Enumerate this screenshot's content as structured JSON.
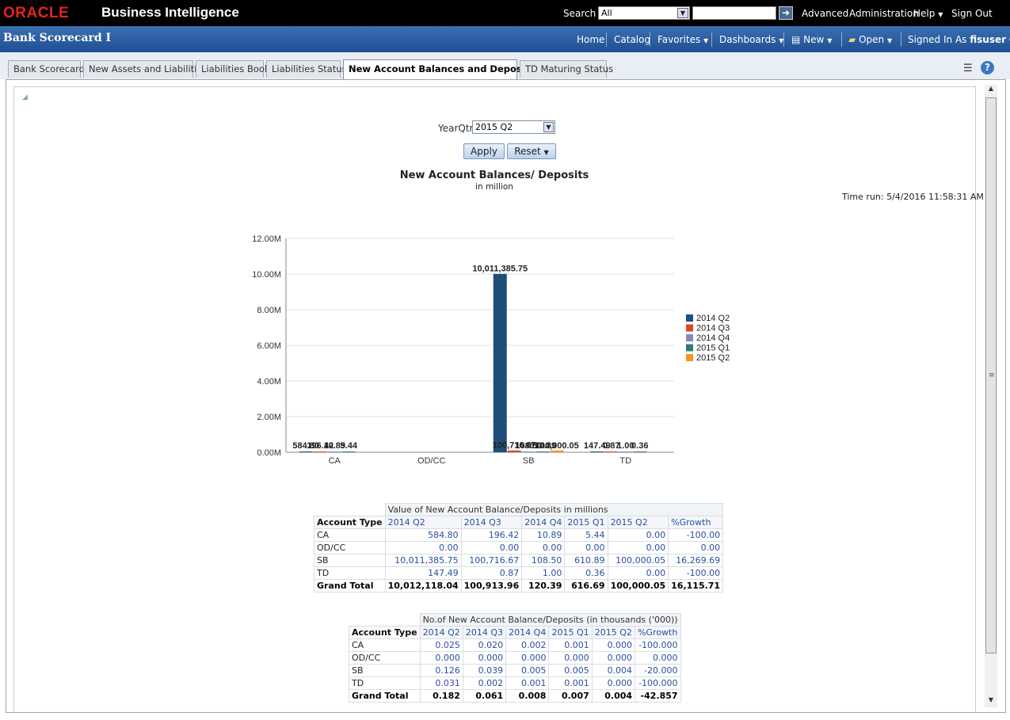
{
  "topbar": {
    "logo": "ORACLE",
    "product": "Business Intelligence",
    "search_label": "Search",
    "search_scope": "All",
    "links": [
      "Advanced",
      "Administration",
      "Help",
      "Sign Out"
    ]
  },
  "header": {
    "title": "Bank Scorecard I",
    "nav": [
      "Home",
      "Catalog",
      "Favorites",
      "Dashboards",
      "New",
      "Open"
    ],
    "signed_in_label": "Signed In As",
    "user": "fisuser"
  },
  "tabs": [
    "Bank Scorecard",
    "New Assets and Liabilities",
    "Liabilities Book",
    "Liabilities Status",
    "New Account Balances and Deposits",
    "TD Maturing Status"
  ],
  "active_tab": "New Account Balances and Deposits",
  "prompt": {
    "label": "YearQtr",
    "value": "2015 Q2",
    "apply": "Apply",
    "reset": "Reset"
  },
  "chart_header": {
    "title": "New Account Balances/ Deposits",
    "subtitle": "in million",
    "time_run": "Time run: 5/4/2016 11:58:31 AM"
  },
  "chart_data": {
    "type": "bar",
    "categories": [
      "CA",
      "OD/CC",
      "SB",
      "TD"
    ],
    "series": [
      {
        "name": "2014 Q2",
        "color": "#1f4e79",
        "values": [
          584.8,
          0.0,
          10011385.75,
          147.49
        ]
      },
      {
        "name": "2014 Q3",
        "color": "#e0452a",
        "values": [
          196.42,
          0.0,
          100716.67,
          0.87
        ]
      },
      {
        "name": "2014 Q4",
        "color": "#8b86b8",
        "values": [
          10.89,
          0.0,
          108.5,
          1.0
        ]
      },
      {
        "name": "2015 Q1",
        "color": "#2e7d6e",
        "values": [
          5.44,
          0.0,
          610.89,
          0.36
        ]
      },
      {
        "name": "2015 Q2",
        "color": "#f7941d",
        "values": [
          0.0,
          0.0,
          100000.05,
          0.0
        ]
      }
    ],
    "data_labels": {
      "CA": [
        "584.80",
        "196.42",
        "10.89",
        "5.44",
        ""
      ],
      "SB": [
        "10,011,385.75",
        "100,716.67",
        "108.50",
        "610.89",
        "100,000.05"
      ],
      "TD": [
        "147.49",
        "0.87",
        "1.00",
        "0.36",
        ""
      ]
    },
    "yticks": [
      "0.00M",
      "2.00M",
      "4.00M",
      "6.00M",
      "8.00M",
      "10.00M",
      "12.00M"
    ],
    "ylim": [
      0,
      12000000
    ],
    "legend": "right"
  },
  "table1": {
    "caption": "Value of New Account Balance/Deposits in millions",
    "row_header": "Account Type",
    "columns": [
      "2014 Q2",
      "2014 Q3",
      "2014 Q4",
      "2015 Q1",
      "2015 Q2",
      "%Growth"
    ],
    "rows": [
      {
        "label": "CA",
        "cells": [
          "584.80",
          "196.42",
          "10.89",
          "5.44",
          "0.00",
          "-100.00"
        ]
      },
      {
        "label": "OD/CC",
        "cells": [
          "0.00",
          "0.00",
          "0.00",
          "0.00",
          "0.00",
          "0.00"
        ]
      },
      {
        "label": "SB",
        "cells": [
          "10,011,385.75",
          "100,716.67",
          "108.50",
          "610.89",
          "100,000.05",
          "16,269.69"
        ]
      },
      {
        "label": "TD",
        "cells": [
          "147.49",
          "0.87",
          "1.00",
          "0.36",
          "0.00",
          "-100.00"
        ]
      }
    ],
    "total": {
      "label": "Grand Total",
      "cells": [
        "10,012,118.04",
        "100,913.96",
        "120.39",
        "616.69",
        "100,000.05",
        "16,115.71"
      ]
    }
  },
  "table2": {
    "caption": "No.of New Account Balance/Deposits (in thousands ('000))",
    "row_header": "Account Type",
    "columns": [
      "2014 Q2",
      "2014 Q3",
      "2014 Q4",
      "2015 Q1",
      "2015 Q2",
      "%Growth"
    ],
    "rows": [
      {
        "label": "CA",
        "cells": [
          "0.025",
          "0.020",
          "0.002",
          "0.001",
          "0.000",
          "-100.000"
        ]
      },
      {
        "label": "OD/CC",
        "cells": [
          "0.000",
          "0.000",
          "0.000",
          "0.000",
          "0.000",
          "0.000"
        ]
      },
      {
        "label": "SB",
        "cells": [
          "0.126",
          "0.039",
          "0.005",
          "0.005",
          "0.004",
          "-20.000"
        ]
      },
      {
        "label": "TD",
        "cells": [
          "0.031",
          "0.002",
          "0.001",
          "0.001",
          "0.000",
          "-100.000"
        ]
      }
    ],
    "total": {
      "label": "Grand Total",
      "cells": [
        "0.182",
        "0.061",
        "0.008",
        "0.007",
        "0.004",
        "-42.857"
      ]
    }
  }
}
